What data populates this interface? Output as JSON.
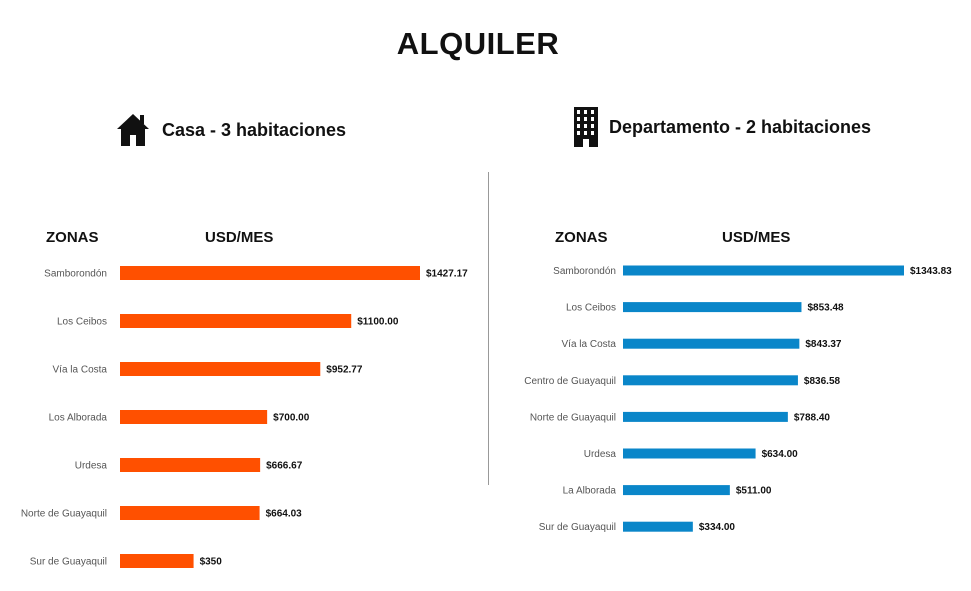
{
  "title": "ALQUILER",
  "colors": {
    "casa_bar": "#ff5000",
    "depto_bar": "#0a86c9"
  },
  "panels": {
    "casa": {
      "icon": "house-icon",
      "label": "Casa - 3 habitaciones",
      "zones_header": "ZONAS",
      "units_header": "USD/MES"
    },
    "depto": {
      "icon": "building-icon",
      "label": "Departamento - 2 habitaciones",
      "zones_header": "ZONAS",
      "units_header": "USD/MES"
    }
  },
  "chart_data": [
    {
      "type": "bar",
      "orientation": "horizontal",
      "title": "Casa - 3 habitaciones",
      "xlabel": "USD/MES",
      "ylabel": "ZONAS",
      "categories": [
        "Samborondón",
        "Los Ceibos",
        "Vía la Costa",
        "Los Alborada",
        "Urdesa",
        "Norte de Guayaquil",
        "Sur de Guayaquil"
      ],
      "values": [
        1427.17,
        1100.0,
        952.77,
        700.0,
        666.67,
        664.03,
        350
      ],
      "value_labels": [
        "$1427.17",
        "$1100.00",
        "$952.77",
        "$700.00",
        "$666.67",
        "$664.03",
        "$350"
      ],
      "xlim": [
        0,
        1427.17
      ],
      "color": "#ff5000",
      "grid": false
    },
    {
      "type": "bar",
      "orientation": "horizontal",
      "title": "Departamento - 2 habitaciones",
      "xlabel": "USD/MES",
      "ylabel": "ZONAS",
      "categories": [
        "Samborondón",
        "Los Ceibos",
        "Vía la Costa",
        "Centro de Guayaquil",
        "Norte de Guayaquil",
        "Urdesa",
        "La Alborada",
        "Sur de Guayaquil"
      ],
      "values": [
        1343.83,
        853.48,
        843.37,
        836.58,
        788.4,
        634.0,
        511.0,
        334.0
      ],
      "value_labels": [
        "$1343.83",
        "$853.48",
        "$843.37",
        "$836.58",
        "$788.40",
        "$634.00",
        "$511.00",
        "$334.00"
      ],
      "xlim": [
        0,
        1343.83
      ],
      "color": "#0a86c9",
      "grid": false
    }
  ]
}
